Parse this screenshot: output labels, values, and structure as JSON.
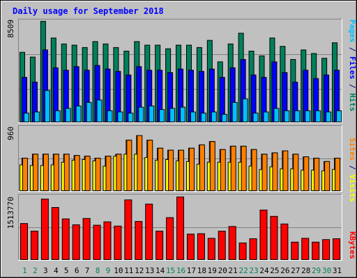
{
  "title": "Daily usage for September 2018",
  "colors": {
    "background": "#c0c0c0",
    "title": "#0000ff",
    "hits": "#00805c",
    "files": "#0000ff",
    "pages": "#00c0ff",
    "visits": "#ffff00",
    "sites": "#ff8000",
    "kbytes": "#ff0000",
    "weekend_day": "#00805c",
    "weekday": "#000080"
  },
  "y_axis_labels": {
    "top": "8509",
    "middle": "960",
    "bottom": "1513770"
  },
  "right_labels": {
    "top": [
      {
        "text": "Pages",
        "color_key": "pages"
      },
      {
        "text": " / ",
        "color_key": "weekday"
      },
      {
        "text": "Files",
        "color_key": "files"
      },
      {
        "text": " / ",
        "color_key": "weekday"
      },
      {
        "text": "Hits",
        "color_key": "hits"
      }
    ],
    "middle": [
      {
        "text": "Sites",
        "color_key": "sites"
      },
      {
        "text": " / ",
        "color_key": "weekday"
      },
      {
        "text": "Visits",
        "color_key": "visits"
      }
    ],
    "bottom": [
      {
        "text": "KBytes",
        "color_key": "kbytes"
      }
    ]
  },
  "days": [
    "1",
    "2",
    "3",
    "4",
    "5",
    "6",
    "7",
    "8",
    "9",
    "10",
    "11",
    "12",
    "13",
    "14",
    "15",
    "16",
    "17",
    "18",
    "19",
    "20",
    "21",
    "22",
    "23",
    "24",
    "25",
    "26",
    "27",
    "28",
    "29",
    "30",
    "31"
  ],
  "weekend_days": [
    "1",
    "2",
    "8",
    "9",
    "15",
    "16",
    "22",
    "23",
    "29",
    "30"
  ],
  "chart_data": [
    {
      "type": "bar",
      "name": "hits-files-pages",
      "categories": [
        "1",
        "2",
        "3",
        "4",
        "5",
        "6",
        "7",
        "8",
        "9",
        "10",
        "11",
        "12",
        "13",
        "14",
        "15",
        "16",
        "17",
        "18",
        "19",
        "20",
        "21",
        "22",
        "23",
        "24",
        "25",
        "26",
        "27",
        "28",
        "29",
        "30",
        "31"
      ],
      "ylim": [
        0,
        8509
      ],
      "series": [
        {
          "name": "Hits",
          "values": [
            5900,
            5500,
            8500,
            7100,
            6600,
            6500,
            6300,
            6800,
            6600,
            6300,
            6000,
            6800,
            6500,
            6500,
            6200,
            6500,
            6500,
            6300,
            6900,
            5100,
            6600,
            7500,
            6000,
            5600,
            7100,
            6400,
            5300,
            6100,
            5800,
            5400,
            6700
          ]
        },
        {
          "name": "Files",
          "values": [
            3800,
            3400,
            6100,
            4600,
            4400,
            4700,
            4400,
            4800,
            4500,
            4300,
            4000,
            4700,
            4400,
            4400,
            4200,
            4500,
            4400,
            4300,
            4500,
            3800,
            4600,
            5300,
            4000,
            3800,
            5100,
            4200,
            3400,
            4400,
            3700,
            4000,
            4400
          ]
        },
        {
          "name": "Pages",
          "values": [
            800,
            900,
            2700,
            1000,
            1200,
            1400,
            1700,
            1900,
            1000,
            900,
            800,
            1300,
            1400,
            1100,
            1200,
            1300,
            900,
            800,
            900,
            700,
            1700,
            2000,
            800,
            900,
            1200,
            1000,
            1000,
            1000,
            1000,
            900,
            1000
          ]
        }
      ]
    },
    {
      "type": "bar",
      "name": "sites-visits",
      "categories": [
        "1",
        "2",
        "3",
        "4",
        "5",
        "6",
        "7",
        "8",
        "9",
        "10",
        "11",
        "12",
        "13",
        "14",
        "15",
        "16",
        "17",
        "18",
        "19",
        "20",
        "21",
        "22",
        "23",
        "24",
        "25",
        "26",
        "27",
        "28",
        "29",
        "30",
        "31"
      ],
      "ylim": [
        0,
        960
      ],
      "series": [
        {
          "name": "Sites",
          "values": [
            500,
            560,
            560,
            560,
            560,
            540,
            530,
            500,
            530,
            560,
            770,
            840,
            770,
            650,
            620,
            620,
            650,
            700,
            750,
            630,
            680,
            680,
            630,
            560,
            580,
            610,
            560,
            520,
            500,
            450,
            500
          ]
        },
        {
          "name": "Visits",
          "values": [
            400,
            390,
            390,
            400,
            440,
            470,
            480,
            460,
            380,
            530,
            560,
            560,
            510,
            470,
            480,
            460,
            450,
            410,
            440,
            440,
            440,
            440,
            380,
            330,
            370,
            340,
            340,
            320,
            320,
            310,
            330
          ]
        }
      ]
    },
    {
      "type": "bar",
      "name": "kbytes",
      "categories": [
        "1",
        "2",
        "3",
        "4",
        "5",
        "6",
        "7",
        "8",
        "9",
        "10",
        "11",
        "12",
        "13",
        "14",
        "15",
        "16",
        "17",
        "18",
        "19",
        "20",
        "21",
        "22",
        "23",
        "24",
        "25",
        "26",
        "27",
        "28",
        "29",
        "30",
        "31"
      ],
      "ylim": [
        0,
        1513770
      ],
      "series": [
        {
          "name": "KBytes",
          "values": [
            870000,
            690000,
            1450000,
            1250000,
            980000,
            840000,
            990000,
            830000,
            910000,
            810000,
            1430000,
            920000,
            1330000,
            690000,
            1010000,
            1500000,
            620000,
            630000,
            520000,
            690000,
            800000,
            410000,
            510000,
            1190000,
            1040000,
            860000,
            430000,
            520000,
            430000,
            490000,
            510000
          ]
        }
      ]
    }
  ]
}
